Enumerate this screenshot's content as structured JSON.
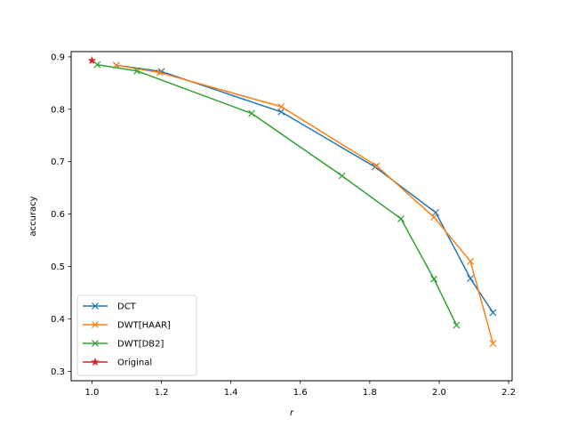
{
  "chart_data": {
    "type": "line",
    "title": "",
    "xlabel": "r",
    "ylabel": "accuracy",
    "xlim": [
      0.94,
      2.21
    ],
    "ylim": [
      0.282,
      0.91
    ],
    "xticks": [
      1.0,
      1.2,
      1.4,
      1.6,
      1.8,
      2.0,
      2.2
    ],
    "xtick_labels": [
      "1.0",
      "1.2",
      "1.4",
      "1.6",
      "1.8",
      "2.0",
      "2.2"
    ],
    "yticks": [
      0.3,
      0.4,
      0.5,
      0.6,
      0.7,
      0.8,
      0.9
    ],
    "ytick_labels": [
      "0.3",
      "0.4",
      "0.5",
      "0.6",
      "0.7",
      "0.8",
      "0.9"
    ],
    "grid": false,
    "legend_position": "lower-left",
    "series": [
      {
        "name": "DCT",
        "color": "#1f77b4",
        "marker": "x",
        "x": [
          1.07,
          1.2,
          1.545,
          1.815,
          1.99,
          2.09,
          2.155
        ],
        "y": [
          0.884,
          0.872,
          0.795,
          0.69,
          0.603,
          0.477,
          0.412
        ]
      },
      {
        "name": "DWT[HAAR]",
        "color": "#ff7f0e",
        "marker": "x",
        "x": [
          1.07,
          1.195,
          1.545,
          1.82,
          1.985,
          2.09,
          2.155
        ],
        "y": [
          0.884,
          0.87,
          0.805,
          0.692,
          0.594,
          0.51,
          0.353
        ]
      },
      {
        "name": "DWT[DB2]",
        "color": "#2ca02c",
        "marker": "x",
        "x": [
          1.015,
          1.13,
          1.46,
          1.72,
          1.89,
          1.985,
          2.05
        ],
        "y": [
          0.885,
          0.873,
          0.792,
          0.673,
          0.591,
          0.476,
          0.388
        ]
      },
      {
        "name": "Original",
        "color": "#d62728",
        "marker": "star",
        "x": [
          1.0
        ],
        "y": [
          0.893
        ]
      }
    ]
  }
}
